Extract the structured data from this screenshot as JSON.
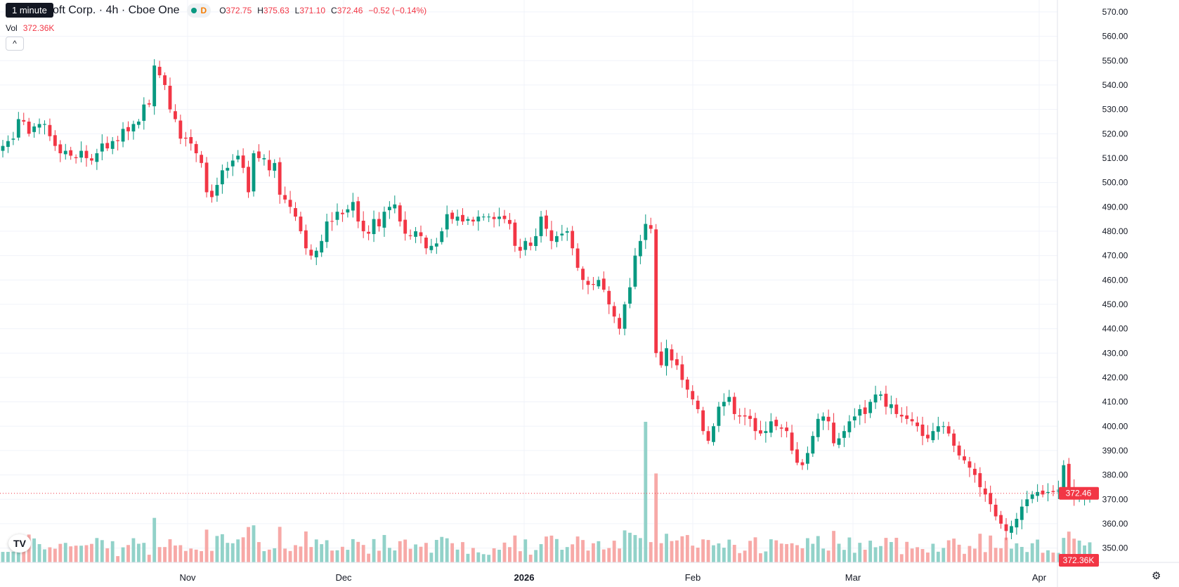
{
  "tooltip": "1 minute",
  "legend": {
    "title": "oft Corp. · 4h · Cboe One",
    "interval_badge": "D",
    "o_label": "O",
    "o": "372.75",
    "h_label": "H",
    "h": "375.63",
    "l_label": "L",
    "l": "371.10",
    "c_label": "C",
    "c": "372.46",
    "change": "−0.52 (−0.14%)",
    "vol_label": "Vol",
    "vol": "372.36K"
  },
  "colors": {
    "up": "#089981",
    "down": "#f23645",
    "up_vol": "#92d2c9",
    "down_vol": "#f7a9a7",
    "grid": "#f0f3fa"
  },
  "icons": {
    "collapse": "chevron-up-icon",
    "logo": "tradingview-logo-icon",
    "settings": "gear-icon"
  },
  "chart_data": {
    "type": "candlestick",
    "ylim": [
      347,
      572
    ],
    "y_ticks": [
      "570.00",
      "560.00",
      "550.00",
      "540.00",
      "530.00",
      "520.00",
      "510.00",
      "500.00",
      "490.00",
      "480.00",
      "470.00",
      "460.00",
      "450.00",
      "440.00",
      "430.00",
      "420.00",
      "410.00",
      "400.00",
      "390.00",
      "380.00",
      "370.00",
      "360.00",
      "350.00"
    ],
    "x_ticks": [
      "Nov",
      "Dec",
      "2026",
      "Feb",
      "Mar",
      "Apr"
    ],
    "current_price": "372.46",
    "current_volume": "372.36K",
    "closes": [
      515,
      517,
      518,
      526,
      525,
      520,
      523,
      524,
      524,
      519,
      515,
      512,
      513,
      511,
      510,
      513,
      510,
      509,
      512,
      516,
      514,
      517,
      517,
      522,
      521,
      524,
      525,
      532,
      532,
      548,
      544,
      540,
      530,
      526,
      518,
      518,
      516,
      512,
      508,
      496,
      494,
      499,
      505,
      506,
      509,
      511,
      506,
      496,
      512,
      510,
      510,
      505,
      508,
      495,
      493,
      490,
      486,
      480,
      473,
      470,
      472,
      476,
      484,
      484,
      488,
      487,
      489,
      492,
      484,
      480,
      479,
      485,
      482,
      488,
      490,
      491,
      484,
      479,
      478,
      480,
      478,
      473,
      474,
      475,
      480,
      487,
      485,
      486,
      484,
      485,
      484,
      486,
      486,
      486,
      485,
      486,
      485,
      483,
      474,
      472,
      476,
      474,
      478,
      486,
      481,
      476,
      478,
      479,
      480,
      473,
      465,
      460,
      458,
      458,
      460,
      456,
      450,
      445,
      440,
      450,
      457,
      470,
      476,
      483,
      481,
      430,
      425,
      432,
      427,
      425,
      419,
      415,
      411,
      407,
      398,
      394,
      400,
      408,
      410,
      412,
      405,
      404,
      404,
      403,
      398,
      397,
      398,
      402,
      400,
      399,
      398,
      390,
      385,
      384,
      389,
      396,
      403,
      404,
      402,
      393,
      395,
      398,
      402,
      404,
      407,
      405,
      410,
      413,
      413,
      408,
      409,
      405,
      404,
      403,
      402,
      400,
      396,
      395,
      398,
      400,
      400,
      397,
      392,
      388,
      386,
      383,
      380,
      375,
      372,
      368,
      363,
      360,
      357,
      359,
      362,
      367,
      370,
      372,
      373,
      372,
      373,
      373,
      374,
      384,
      374,
      371,
      372,
      372,
      373
    ]
  }
}
